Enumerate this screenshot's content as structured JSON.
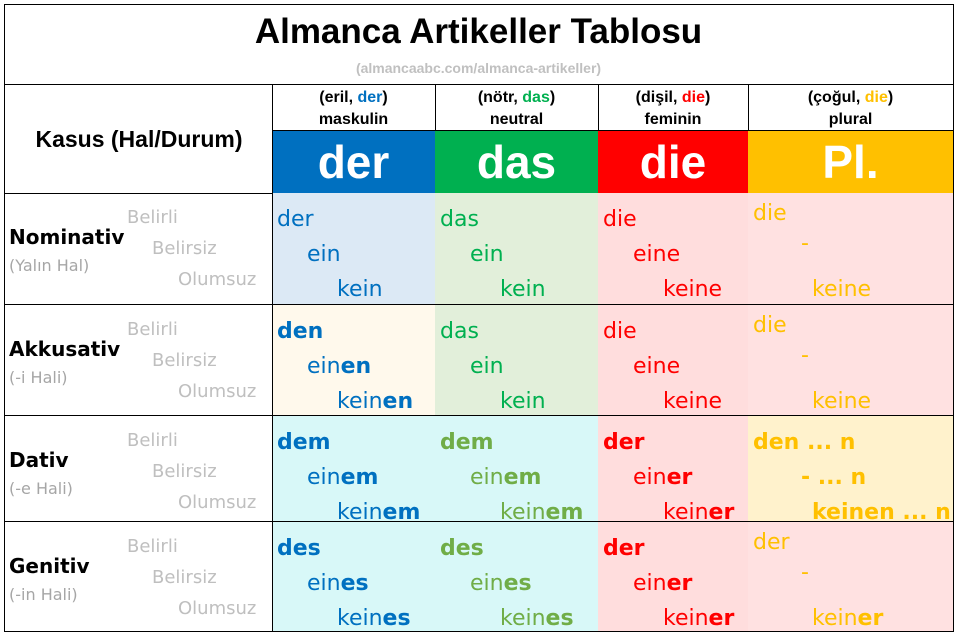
{
  "title": "Almanca Artikeller Tablosu",
  "subtitle": "(almancaabc.com/almanca-artikeller)",
  "kasus_header": "Kasus (Hal/Durum)",
  "colors": {
    "masc": "#0070c0",
    "neut": "#00b050",
    "fem": "#ff0000",
    "plur": "#ffc000",
    "masc_bg": "#dce9f5",
    "neut_bg": "#e2efda",
    "fem_bg": "#ffdddd",
    "plur_bg": "#ffe1e1",
    "akk_masc_bg": "#fff9ec",
    "dat_gen_bg": "#d8f8f8",
    "dat_gen_neut_text": "#70ad47",
    "dat_plur_bg": "#fff2cc"
  },
  "genders": [
    {
      "open": "(eril, ",
      "art": "der",
      "close": ")",
      "label": "maskulin",
      "big": "der"
    },
    {
      "open": "(nötr, ",
      "art": "das",
      "close": ")",
      "label": "neutral",
      "big": "das"
    },
    {
      "open": "(dişil, ",
      "art": "die",
      "close": ")",
      "label": "feminin",
      "big": "die"
    },
    {
      "open": "(çoğul, ",
      "art": "die",
      "close": ")",
      "label": "plural",
      "big": "Pl."
    }
  ],
  "levels": [
    "Belirli",
    "Belirsiz",
    "Olumsuz"
  ],
  "cases": [
    {
      "name": "Nominativ",
      "sub": "(Yalın Hal)",
      "cells": [
        [
          [
            "der",
            ""
          ],
          [
            "ein",
            ""
          ],
          [
            "kein",
            ""
          ]
        ],
        [
          [
            "das",
            ""
          ],
          [
            "ein",
            ""
          ],
          [
            "kein",
            ""
          ]
        ],
        [
          [
            "die",
            ""
          ],
          [
            "eine",
            ""
          ],
          [
            "keine",
            ""
          ]
        ],
        [
          [
            "die",
            ""
          ],
          [
            "-",
            ""
          ],
          [
            "keine",
            ""
          ]
        ]
      ]
    },
    {
      "name": "Akkusativ",
      "sub": "(-i Hali)",
      "cells": [
        [
          [
            "d",
            "en"
          ],
          [
            "ein",
            "en"
          ],
          [
            "kein",
            "en"
          ]
        ],
        [
          [
            "das",
            ""
          ],
          [
            "ein",
            ""
          ],
          [
            "kein",
            ""
          ]
        ],
        [
          [
            "die",
            ""
          ],
          [
            "eine",
            ""
          ],
          [
            "keine",
            ""
          ]
        ],
        [
          [
            "die",
            ""
          ],
          [
            "-",
            ""
          ],
          [
            "keine",
            ""
          ]
        ]
      ]
    },
    {
      "name": "Dativ",
      "sub": "(-e Hali)",
      "cells": [
        [
          [
            "d",
            "em"
          ],
          [
            "ein",
            "em"
          ],
          [
            "kein",
            "em"
          ]
        ],
        [
          [
            "d",
            "em"
          ],
          [
            "ein",
            "em"
          ],
          [
            "kein",
            "em"
          ]
        ],
        [
          [
            "d",
            "er"
          ],
          [
            "ein",
            "er"
          ],
          [
            "kein",
            "er"
          ]
        ],
        [
          [
            "den ... n",
            ""
          ],
          [
            "-  ... n",
            ""
          ],
          [
            "keinen ... n",
            ""
          ]
        ]
      ]
    },
    {
      "name": "Genitiv",
      "sub": "(-in Hali)",
      "cells": [
        [
          [
            "d",
            "es"
          ],
          [
            "ein",
            "es"
          ],
          [
            "kein",
            "es"
          ]
        ],
        [
          [
            "d",
            "es"
          ],
          [
            "ein",
            "es"
          ],
          [
            "kein",
            "es"
          ]
        ],
        [
          [
            "d",
            "er"
          ],
          [
            "ein",
            "er"
          ],
          [
            "kein",
            "er"
          ]
        ],
        [
          [
            "der",
            ""
          ],
          [
            "-",
            ""
          ],
          [
            "kein",
            "er"
          ]
        ]
      ]
    }
  ]
}
